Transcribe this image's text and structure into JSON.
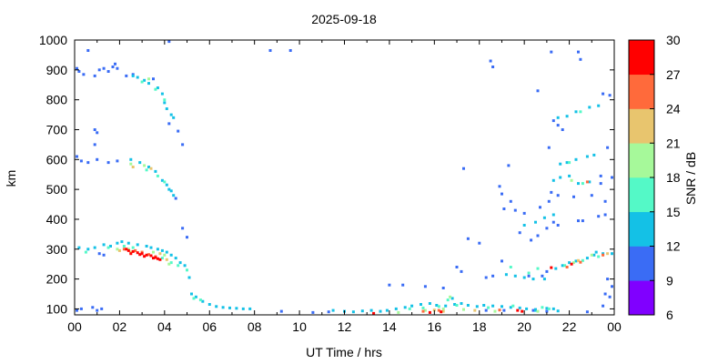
{
  "chart_data": {
    "type": "scatter",
    "title": "2025-09-18",
    "xlabel": "UT Time / hrs",
    "ylabel": "km",
    "xlim": [
      0,
      24
    ],
    "ylim": [
      80,
      1000
    ],
    "xticks": [
      "00",
      "02",
      "04",
      "06",
      "08",
      "10",
      "12",
      "14",
      "16",
      "18",
      "20",
      "22",
      "00"
    ],
    "yticks": [
      100,
      200,
      300,
      400,
      500,
      600,
      700,
      800,
      900,
      1000
    ],
    "grid": false,
    "colorbar": {
      "label": "SNR / dB",
      "min": 6,
      "max": 30,
      "ticks": [
        6,
        9,
        12,
        15,
        18,
        21,
        24,
        27,
        30
      ],
      "colors": [
        "#8000ff",
        "#3a6cf5",
        "#14c1e6",
        "#54f9c7",
        "#a6f99a",
        "#e8c56e",
        "#ff6a3b",
        "#ff0000"
      ]
    },
    "series": [
      {
        "name": "",
        "snr": 10,
        "points": [
          [
            0.1,
            905
          ],
          [
            0.2,
            895
          ],
          [
            0.4,
            885
          ],
          [
            0.9,
            880
          ],
          [
            1.1,
            900
          ],
          [
            1.3,
            905
          ],
          [
            1.5,
            895
          ],
          [
            1.7,
            910
          ],
          [
            1.8,
            920
          ],
          [
            1.9,
            905
          ],
          [
            2.3,
            880
          ],
          [
            2.6,
            885
          ],
          [
            3.5,
            870
          ],
          [
            4.2,
            720
          ],
          [
            4.6,
            695
          ],
          [
            4.8,
            650
          ],
          [
            4.2,
            995
          ],
          [
            8.7,
            965
          ],
          [
            0.6,
            965
          ],
          [
            9.6,
            965
          ],
          [
            0.1,
            610
          ],
          [
            0.3,
            595
          ],
          [
            0.6,
            590
          ],
          [
            1.0,
            600
          ],
          [
            1.5,
            590
          ],
          [
            1.9,
            595
          ],
          [
            4.5,
            470
          ],
          [
            0.9,
            700
          ],
          [
            1.0,
            690
          ],
          [
            0.9,
            650
          ],
          [
            1.1,
            285
          ],
          [
            1.3,
            280
          ],
          [
            4.8,
            370
          ],
          [
            5.0,
            340
          ],
          [
            0.1,
            95
          ],
          [
            0.3,
            100
          ],
          [
            0.8,
            105
          ],
          [
            1.0,
            95
          ],
          [
            1.2,
            100
          ],
          [
            9.2,
            92
          ],
          [
            10.6,
            88
          ],
          [
            11.3,
            90
          ],
          [
            18.5,
            930
          ],
          [
            18.6,
            910
          ],
          [
            19.3,
            580
          ],
          [
            17.3,
            570
          ],
          [
            18.9,
            510
          ],
          [
            19.0,
            485
          ],
          [
            22.4,
            960
          ],
          [
            22.5,
            935
          ],
          [
            21.2,
            960
          ],
          [
            20.6,
            830
          ],
          [
            21.3,
            730
          ],
          [
            21.5,
            715
          ],
          [
            21.1,
            640
          ],
          [
            23.5,
            820
          ],
          [
            23.8,
            815
          ],
          [
            23.7,
            640
          ],
          [
            23.4,
            545
          ],
          [
            23.9,
            540
          ],
          [
            23.6,
            460
          ],
          [
            21.7,
            700
          ],
          [
            17.5,
            335
          ],
          [
            18.0,
            320
          ],
          [
            19.8,
            355
          ],
          [
            20.3,
            330
          ],
          [
            20.6,
            345
          ],
          [
            21.0,
            370
          ],
          [
            21.3,
            390
          ],
          [
            21.5,
            380
          ],
          [
            22.4,
            395
          ],
          [
            23.3,
            410
          ],
          [
            23.6,
            415
          ],
          [
            19.4,
            460
          ],
          [
            19.1,
            435
          ],
          [
            19.6,
            430
          ],
          [
            20.0,
            420
          ],
          [
            20.7,
            440
          ],
          [
            21.1,
            460
          ],
          [
            21.2,
            490
          ],
          [
            21.5,
            480
          ],
          [
            22.2,
            475
          ],
          [
            23.0,
            480
          ],
          [
            23.4,
            520
          ],
          [
            20.2,
            210
          ],
          [
            20.8,
            210
          ],
          [
            21.0,
            225
          ],
          [
            19.0,
            260
          ],
          [
            18.6,
            210
          ],
          [
            18.3,
            205
          ],
          [
            17.0,
            240
          ],
          [
            17.2,
            225
          ],
          [
            23.7,
            200
          ],
          [
            23.9,
            175
          ],
          [
            23.6,
            150
          ],
          [
            23.8,
            140
          ],
          [
            23.5,
            110
          ],
          [
            16.4,
            170
          ],
          [
            14.0,
            180
          ],
          [
            14.6,
            180
          ],
          [
            15.6,
            175
          ],
          [
            22.6,
            395
          ],
          [
            18.3,
            95
          ],
          [
            19.1,
            95
          ],
          [
            20.4,
            95
          ],
          [
            21.0,
            92
          ],
          [
            22.8,
            90
          ]
        ]
      },
      {
        "name": "",
        "snr": 13,
        "points": [
          [
            2.6,
            880
          ],
          [
            2.8,
            875
          ],
          [
            3.1,
            865
          ],
          [
            3.3,
            855
          ],
          [
            3.7,
            840
          ],
          [
            3.9,
            820
          ],
          [
            4.0,
            790
          ],
          [
            4.1,
            770
          ],
          [
            4.3,
            750
          ],
          [
            4.4,
            740
          ],
          [
            2.5,
            600
          ],
          [
            2.9,
            590
          ],
          [
            3.3,
            575
          ],
          [
            3.6,
            560
          ],
          [
            3.9,
            530
          ],
          [
            4.1,
            515
          ],
          [
            4.2,
            500
          ],
          [
            4.3,
            495
          ],
          [
            4.4,
            480
          ],
          [
            0.2,
            305
          ],
          [
            0.6,
            300
          ],
          [
            0.9,
            305
          ],
          [
            1.3,
            315
          ],
          [
            1.6,
            310
          ],
          [
            1.9,
            320
          ],
          [
            2.1,
            325
          ],
          [
            2.4,
            320
          ],
          [
            2.8,
            315
          ],
          [
            3.2,
            310
          ],
          [
            3.4,
            305
          ],
          [
            3.7,
            300
          ],
          [
            3.9,
            295
          ],
          [
            4.1,
            290
          ],
          [
            4.3,
            280
          ],
          [
            4.5,
            270
          ],
          [
            4.7,
            255
          ],
          [
            4.9,
            245
          ],
          [
            5.1,
            205
          ],
          [
            5.2,
            150
          ],
          [
            5.4,
            140
          ],
          [
            5.7,
            125
          ],
          [
            6.0,
            115
          ],
          [
            6.3,
            108
          ],
          [
            6.6,
            105
          ],
          [
            6.9,
            103
          ],
          [
            7.2,
            102
          ],
          [
            7.5,
            100
          ],
          [
            7.8,
            100
          ],
          [
            11.5,
            95
          ],
          [
            12.0,
            92
          ],
          [
            12.4,
            90
          ],
          [
            12.8,
            93
          ],
          [
            13.2,
            95
          ],
          [
            13.6,
            92
          ],
          [
            13.9,
            95
          ],
          [
            14.3,
            100
          ],
          [
            14.7,
            105
          ],
          [
            15.0,
            110
          ],
          [
            15.4,
            115
          ],
          [
            15.8,
            118
          ],
          [
            16.1,
            112
          ],
          [
            16.5,
            110
          ],
          [
            16.9,
            115
          ],
          [
            17.2,
            118
          ],
          [
            17.5,
            112
          ],
          [
            17.9,
            108
          ],
          [
            18.2,
            112
          ],
          [
            18.6,
            110
          ],
          [
            19.0,
            108
          ],
          [
            19.4,
            105
          ],
          [
            19.8,
            103
          ],
          [
            20.1,
            100
          ],
          [
            20.5,
            98
          ],
          [
            21.0,
            102
          ],
          [
            21.3,
            100
          ],
          [
            19.2,
            215
          ],
          [
            19.6,
            210
          ],
          [
            20.0,
            205
          ],
          [
            20.4,
            200
          ],
          [
            20.9,
            200
          ],
          [
            21.4,
            235
          ],
          [
            21.7,
            245
          ],
          [
            22.0,
            255
          ],
          [
            22.3,
            260
          ],
          [
            22.8,
            270
          ],
          [
            23.1,
            280
          ],
          [
            23.5,
            285
          ],
          [
            23.9,
            285
          ],
          [
            21.6,
            585
          ],
          [
            21.9,
            590
          ],
          [
            22.3,
            600
          ],
          [
            22.8,
            610
          ],
          [
            23.1,
            615
          ],
          [
            21.5,
            740
          ],
          [
            21.9,
            745
          ],
          [
            22.3,
            760
          ],
          [
            22.9,
            775
          ],
          [
            23.3,
            780
          ],
          [
            21.3,
            530
          ],
          [
            21.6,
            540
          ],
          [
            22.0,
            545
          ],
          [
            22.4,
            520
          ],
          [
            22.9,
            525
          ],
          [
            20.0,
            380
          ],
          [
            20.5,
            390
          ],
          [
            20.9,
            405
          ],
          [
            21.3,
            415
          ],
          [
            23.2,
            290
          ],
          [
            20.5,
            95
          ],
          [
            21.5,
            93
          ],
          [
            16.8,
            135
          ]
        ]
      },
      {
        "name": "",
        "snr": 16,
        "points": [
          [
            3.0,
            860
          ],
          [
            3.6,
            835
          ],
          [
            4.0,
            800
          ],
          [
            3.2,
            565
          ],
          [
            3.7,
            545
          ],
          [
            4.0,
            525
          ],
          [
            0.5,
            290
          ],
          [
            1.5,
            305
          ],
          [
            2.2,
            310
          ],
          [
            2.6,
            305
          ],
          [
            3.9,
            270
          ],
          [
            4.3,
            255
          ],
          [
            4.6,
            245
          ],
          [
            5.0,
            230
          ],
          [
            5.3,
            135
          ],
          [
            5.6,
            130
          ],
          [
            14.9,
            100
          ],
          [
            15.5,
            103
          ],
          [
            16.2,
            108
          ],
          [
            16.6,
            130
          ],
          [
            17.0,
            112
          ],
          [
            18.4,
            104
          ],
          [
            19.5,
            110
          ],
          [
            20.8,
            105
          ],
          [
            21.1,
            100
          ],
          [
            21.8,
            245
          ],
          [
            22.6,
            262
          ],
          [
            23.3,
            275
          ],
          [
            22.6,
            520
          ],
          [
            22.0,
            590
          ],
          [
            22.5,
            760
          ],
          [
            19.4,
            240
          ],
          [
            20.2,
            220
          ],
          [
            20.6,
            235
          ]
        ]
      },
      {
        "name": "",
        "snr": 19,
        "points": [
          [
            3.3,
            870
          ],
          [
            2.5,
            585
          ],
          [
            3.1,
            580
          ],
          [
            1.9,
            300
          ],
          [
            2.4,
            300
          ],
          [
            3.5,
            290
          ],
          [
            4.0,
            280
          ],
          [
            4.2,
            250
          ],
          [
            15.6,
            95
          ],
          [
            16.4,
            100
          ],
          [
            16.7,
            140
          ],
          [
            17.3,
            98
          ],
          [
            18.7,
            92
          ],
          [
            20.6,
            92
          ],
          [
            22.2,
            255
          ],
          [
            23.0,
            280
          ],
          [
            22.1,
            530
          ],
          [
            14.4,
            88
          ]
        ]
      },
      {
        "name": "",
        "snr": 22,
        "points": [
          [
            2.6,
            575
          ],
          [
            3.4,
            570
          ],
          [
            2.0,
            295
          ],
          [
            2.5,
            290
          ],
          [
            3.8,
            285
          ],
          [
            4.1,
            265
          ],
          [
            16.0,
            96
          ],
          [
            16.4,
            92
          ],
          [
            17.8,
            95
          ],
          [
            22.4,
            262
          ],
          [
            23.7,
            285
          ]
        ]
      },
      {
        "name": "",
        "snr": 26,
        "points": [
          [
            2.2,
            300
          ],
          [
            2.7,
            295
          ],
          [
            3.0,
            290
          ],
          [
            3.3,
            282
          ],
          [
            3.6,
            275
          ],
          [
            15.5,
            92
          ],
          [
            16.2,
            95
          ],
          [
            18.9,
            96
          ],
          [
            21.9,
            240
          ],
          [
            22.5,
            256
          ],
          [
            23.5,
            280
          ],
          [
            22.8,
            525
          ]
        ]
      },
      {
        "name": "",
        "snr": 29,
        "points": [
          [
            2.4,
            295
          ],
          [
            2.6,
            292
          ],
          [
            2.8,
            288
          ],
          [
            3.0,
            285
          ],
          [
            3.2,
            280
          ],
          [
            3.4,
            278
          ],
          [
            3.6,
            272
          ],
          [
            3.7,
            268
          ],
          [
            2.9,
            282
          ],
          [
            3.1,
            276
          ],
          [
            2.3,
            300
          ],
          [
            3.5,
            270
          ],
          [
            2.5,
            285
          ],
          [
            3.8,
            265
          ],
          [
            13.3,
            85
          ],
          [
            15.8,
            88
          ],
          [
            16.3,
            90
          ],
          [
            19.7,
            95
          ],
          [
            19.9,
            92
          ],
          [
            21.2,
            238
          ],
          [
            22.1,
            250
          ]
        ]
      }
    ]
  }
}
